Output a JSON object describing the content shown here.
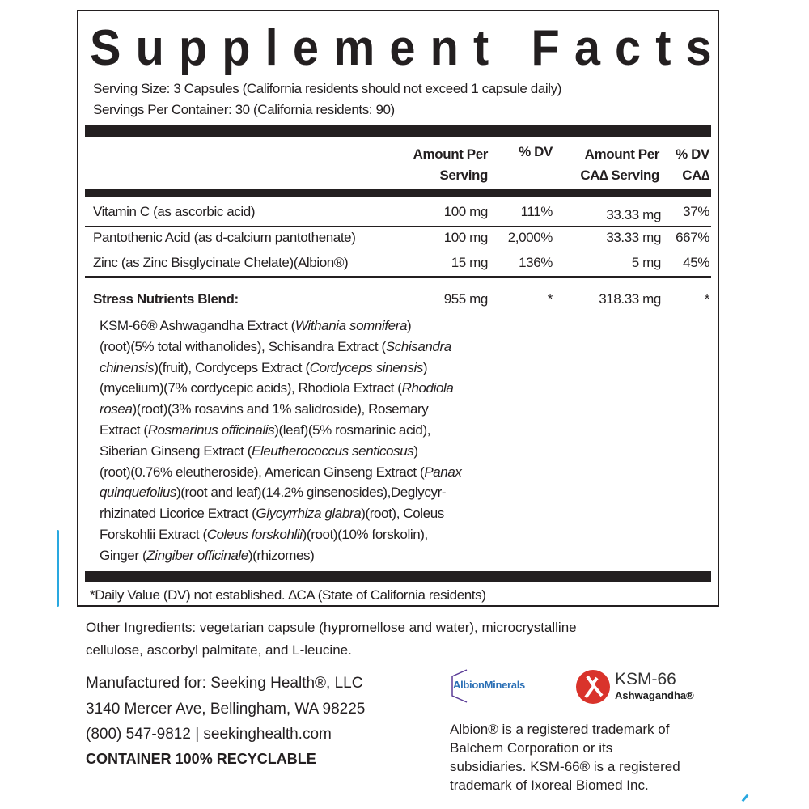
{
  "title": "Supplement Facts",
  "serving_size": "Serving Size: 3 Capsules (California residents should not exceed 1 capsule daily)",
  "servings_per_container": "Servings Per Container: 30 (California residents: 90)",
  "headers": {
    "amount1": "Amount Per",
    "amount2": "Serving",
    "dv": "% DV",
    "ca_amount1": "Amount Per",
    "ca_amount2": "CA∆ Serving",
    "ca_dv1": "% DV",
    "ca_dv2": "CA∆"
  },
  "rows": [
    {
      "name": "Vitamin C (as ascorbic acid)",
      "amount": "100 mg",
      "dv": "111%",
      "ca_amount": "33.33 mg",
      "ca_dv": "37%"
    },
    {
      "name": "Pantothenic Acid (as d-calcium pantothenate)",
      "amount": "100 mg",
      "dv": "2,000%",
      "ca_amount": "33.33 mg",
      "ca_dv": "667%"
    },
    {
      "name": "Zinc (as Zinc Bisglycinate Chelate)(Albion®)",
      "amount": "15 mg",
      "dv": "136%",
      "ca_amount": "5 mg",
      "ca_dv": "45%"
    }
  ],
  "blend": {
    "name": "Stress Nutrients Blend:",
    "amount": "955 mg",
    "dv": "*",
    "ca_amount": "318.33 mg",
    "ca_dv": "*"
  },
  "blend_lines": [
    [
      [
        "KSM-66® Ashwagandha Extract (",
        0
      ],
      [
        "Withania somnifera",
        1
      ],
      [
        ")",
        0
      ]
    ],
    [
      [
        "(root)(5% total withanolides), Schisandra Extract (",
        0
      ],
      [
        "Schisandra",
        1
      ]
    ],
    [
      [
        "chinensis",
        1
      ],
      [
        ")(fruit), Cordyceps Extract (",
        0
      ],
      [
        "Cordyceps sinensis",
        1
      ],
      [
        ")",
        0
      ]
    ],
    [
      [
        "(mycelium)(7% cordycepic acids), Rhodiola Extract (",
        0
      ],
      [
        "Rhodiola",
        1
      ]
    ],
    [
      [
        " rosea",
        1
      ],
      [
        ")(root)(3% rosavins and 1% salidroside), Rosemary",
        0
      ]
    ],
    [
      [
        "Extract (",
        0
      ],
      [
        "Rosmarinus officinalis",
        1
      ],
      [
        ")(leaf)(5% rosmarinic acid),",
        0
      ]
    ],
    [
      [
        "Siberian Ginseng Extract (",
        0
      ],
      [
        "Eleutherococcus senticosus",
        1
      ],
      [
        ")",
        0
      ]
    ],
    [
      [
        "(root)(0.76% eleutheroside), American Ginseng Extract (",
        0
      ],
      [
        "Panax",
        1
      ]
    ],
    [
      [
        "quinquefolius",
        1
      ],
      [
        ")(root and leaf)(14.2% ginsenosides),Deglycyr-",
        0
      ]
    ],
    [
      [
        "rhizinated Licorice Extract (",
        0
      ],
      [
        "Glycyrrhiza glabra",
        1
      ],
      [
        ")(root), Coleus",
        0
      ]
    ],
    [
      [
        "Forskohlii Extract (",
        0
      ],
      [
        "Coleus forskohlii",
        1
      ],
      [
        ")(root)(10% forskolin),",
        0
      ]
    ],
    [
      [
        "Ginger (",
        0
      ],
      [
        "Zingiber officinale",
        1
      ],
      [
        ")(rhizomes)",
        0
      ]
    ]
  ],
  "footnote": "*Daily Value (DV) not established. ∆CA (State of California residents)",
  "other_ingredients": [
    "Other Ingredients: vegetarian capsule (hypromellose and water), microcrystalline",
    "cellulose, ascorbyl palmitate, and L-leucine."
  ],
  "manufacturer": [
    "Manufactured for: Seeking Health®, LLC",
    "3140 Mercer Ave, Bellingham, WA 98225",
    "(800) 547-9812 | seekinghealth.com"
  ],
  "recyclable": "CONTAINER 100% RECYCLABLE",
  "logos": {
    "albion": "AlbionMinerals",
    "ksm": "KSM-66",
    "ksm_sub": "Ashwagandha®"
  },
  "trademark": [
    "Albion® is a registered trademark of",
    "Balchem Corporation or its",
    "subsidiaries. KSM-66® is a registered",
    "trademark of Ixoreal Biomed Inc."
  ],
  "colors": {
    "text": "#231f20",
    "albion_purple": "#5b3c97",
    "albion_blue": "#2a6fb5",
    "ksm_red": "#d9332b",
    "accent_blue": "#29a8e0"
  }
}
